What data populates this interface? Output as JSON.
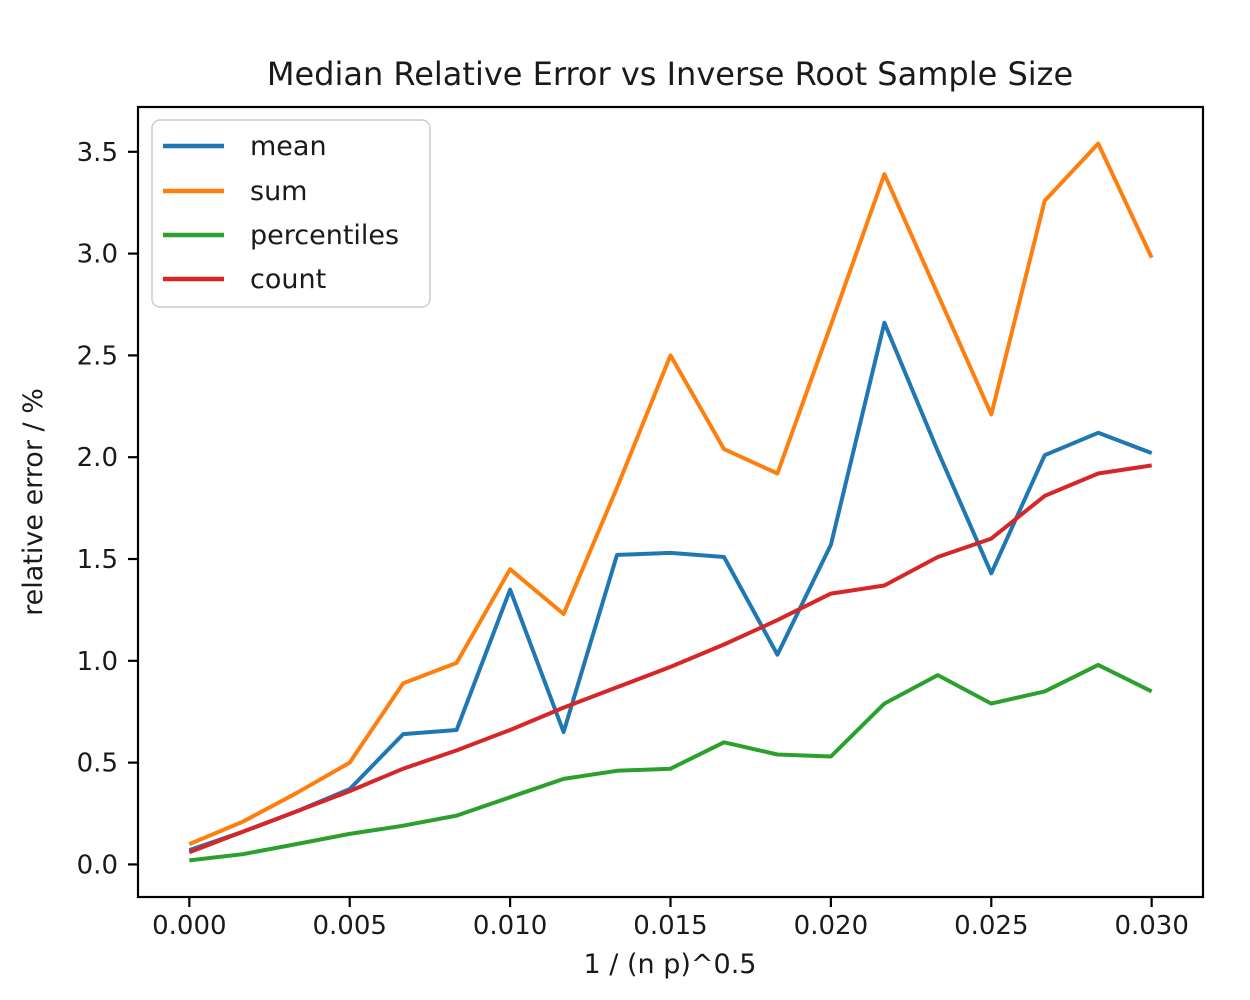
{
  "chart_data": {
    "type": "line",
    "title": "Median Relative Error vs Inverse Root Sample Size",
    "xlabel": "1 / (n p)^0.5",
    "ylabel": "relative error / %",
    "grid": false,
    "legend_position": "upper-left",
    "xlim": [
      -0.0016,
      0.0316
    ],
    "ylim": [
      -0.16,
      3.72
    ],
    "x": [
      0,
      0.0016667,
      0.0033333,
      0.005,
      0.0066667,
      0.0083333,
      0.01,
      0.0116667,
      0.0133333,
      0.015,
      0.0166667,
      0.0183333,
      0.02,
      0.0216667,
      0.0233333,
      0.025,
      0.0266667,
      0.0283333,
      0.03
    ],
    "series": [
      {
        "name": "mean",
        "color": "#1f77b4",
        "values": [
          0.07,
          0.16,
          0.26,
          0.37,
          0.64,
          0.66,
          1.35,
          0.65,
          1.52,
          1.53,
          1.51,
          1.03,
          1.57,
          2.66,
          2.03,
          1.43,
          2.01,
          2.12,
          2.02
        ]
      },
      {
        "name": "sum",
        "color": "#ff7f0e",
        "values": [
          0.1,
          0.21,
          0.35,
          0.5,
          0.89,
          0.99,
          1.45,
          1.23,
          1.85,
          2.5,
          2.04,
          1.92,
          2.65,
          3.39,
          2.8,
          2.21,
          3.26,
          3.54,
          2.98
        ]
      },
      {
        "name": "percentiles",
        "color": "#2ca02c",
        "values": [
          0.02,
          0.05,
          0.1,
          0.15,
          0.19,
          0.24,
          0.33,
          0.42,
          0.46,
          0.47,
          0.6,
          0.54,
          0.53,
          0.79,
          0.93,
          0.79,
          0.85,
          0.98,
          0.85
        ]
      },
      {
        "name": "count",
        "color": "#d62728",
        "values": [
          0.06,
          0.16,
          0.26,
          0.36,
          0.47,
          0.56,
          0.66,
          0.77,
          0.87,
          0.97,
          1.08,
          1.2,
          1.33,
          1.37,
          1.51,
          1.6,
          1.81,
          1.92,
          1.96
        ]
      }
    ],
    "xticks": {
      "values": [
        0,
        0.005,
        0.01,
        0.015,
        0.02,
        0.025,
        0.03
      ],
      "labels": [
        "0.000",
        "0.005",
        "0.010",
        "0.015",
        "0.020",
        "0.025",
        "0.030"
      ]
    },
    "yticks": {
      "values": [
        0,
        0.5,
        1.0,
        1.5,
        2.0,
        2.5,
        3.0,
        3.5
      ],
      "labels": [
        "0.0",
        "0.5",
        "1.0",
        "1.5",
        "2.0",
        "2.5",
        "3.0",
        "3.5"
      ]
    }
  }
}
